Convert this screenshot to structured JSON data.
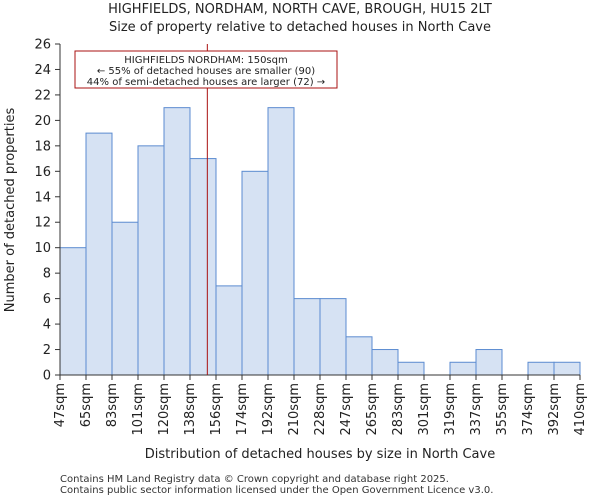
{
  "chart_data": {
    "type": "bar",
    "title": "HIGHFIELDS, NORDHAM, NORTH CAVE, BROUGH, HU15 2LT",
    "subtitle": "Size of property relative to detached houses in North Cave",
    "xlabel": "Distribution of detached houses by size in North Cave",
    "ylabel": "Number of detached properties",
    "tick_labels": [
      "47sqm",
      "65sqm",
      "83sqm",
      "101sqm",
      "120sqm",
      "138sqm",
      "156sqm",
      "174sqm",
      "192sqm",
      "210sqm",
      "228sqm",
      "247sqm",
      "265sqm",
      "283sqm",
      "301sqm",
      "319sqm",
      "337sqm",
      "355sqm",
      "374sqm",
      "392sqm",
      "410sqm"
    ],
    "values": [
      10,
      19,
      12,
      18,
      21,
      17,
      7,
      16,
      21,
      6,
      6,
      3,
      2,
      1,
      0,
      1,
      2,
      0,
      1,
      1
    ],
    "ylim": [
      0,
      26
    ],
    "yticks": [
      0,
      2,
      4,
      6,
      8,
      10,
      12,
      14,
      16,
      18,
      20,
      22,
      24,
      26
    ],
    "marker_value_sqm": 150,
    "annotation": {
      "line1": "HIGHFIELDS NORDHAM: 150sqm",
      "line2": "← 55% of detached houses are smaller (90)",
      "line3": "44% of semi-detached houses are larger (72) →"
    },
    "colors": {
      "bar_fill": "#d6e2f3",
      "bar_edge": "#5b8bd0",
      "marker": "#aa1111"
    }
  },
  "footer": {
    "line1": "Contains HM Land Registry data © Crown copyright and database right 2025.",
    "line2": "Contains public sector information licensed under the Open Government Licence v3.0."
  }
}
